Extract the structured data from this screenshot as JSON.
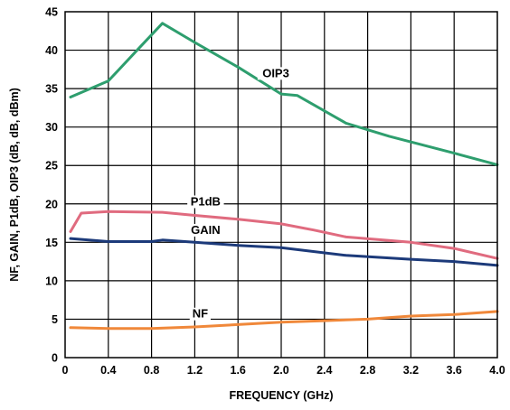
{
  "chart_data": {
    "type": "line",
    "xlabel": "FREQUENCY (GHz)",
    "ylabel": "NF, GAIN, P1dB, OIP3 (dB, dB, dBm)",
    "xlim": [
      0,
      4.0
    ],
    "ylim": [
      0,
      45
    ],
    "x_ticks": [
      "0",
      "0.4",
      "0.8",
      "1.2",
      "1.6",
      "2.0",
      "2.4",
      "2.8",
      "3.2",
      "3.6",
      "4.0"
    ],
    "y_ticks": [
      "0",
      "5",
      "10",
      "15",
      "20",
      "25",
      "30",
      "35",
      "40",
      "45"
    ],
    "grid": true,
    "series": [
      {
        "name": "OIP3",
        "color": "#2e9e6e",
        "label_at": [
          1.95,
          36.5
        ],
        "points": [
          [
            0.05,
            33.9
          ],
          [
            0.4,
            36.0
          ],
          [
            0.7,
            40.5
          ],
          [
            0.9,
            43.5
          ],
          [
            1.2,
            41.0
          ],
          [
            1.6,
            37.8
          ],
          [
            2.0,
            34.3
          ],
          [
            2.15,
            34.1
          ],
          [
            2.6,
            30.5
          ],
          [
            3.0,
            28.8
          ],
          [
            3.6,
            26.6
          ],
          [
            4.0,
            25.1
          ]
        ]
      },
      {
        "name": "P1dB",
        "color": "#e06b7f",
        "label_at": [
          1.3,
          19.8
        ],
        "points": [
          [
            0.05,
            16.4
          ],
          [
            0.15,
            18.8
          ],
          [
            0.4,
            19.0
          ],
          [
            0.9,
            18.9
          ],
          [
            1.2,
            18.5
          ],
          [
            1.6,
            18.0
          ],
          [
            2.0,
            17.4
          ],
          [
            2.3,
            16.6
          ],
          [
            2.6,
            15.7
          ],
          [
            3.2,
            15.0
          ],
          [
            3.6,
            14.2
          ],
          [
            4.0,
            12.9
          ]
        ]
      },
      {
        "name": "GAIN",
        "color": "#1c3a7a",
        "label_at": [
          1.3,
          16.1
        ],
        "points": [
          [
            0.05,
            15.5
          ],
          [
            0.4,
            15.1
          ],
          [
            0.8,
            15.1
          ],
          [
            0.9,
            15.3
          ],
          [
            1.2,
            15.0
          ],
          [
            1.6,
            14.6
          ],
          [
            2.0,
            14.3
          ],
          [
            2.6,
            13.3
          ],
          [
            3.2,
            12.8
          ],
          [
            3.6,
            12.5
          ],
          [
            4.0,
            12.0
          ]
        ]
      },
      {
        "name": "NF",
        "color": "#f0883a",
        "label_at": [
          1.25,
          5.2
        ],
        "points": [
          [
            0.05,
            3.9
          ],
          [
            0.4,
            3.8
          ],
          [
            0.8,
            3.8
          ],
          [
            1.2,
            4.0
          ],
          [
            1.6,
            4.3
          ],
          [
            2.0,
            4.6
          ],
          [
            2.4,
            4.8
          ],
          [
            2.8,
            5.0
          ],
          [
            3.2,
            5.4
          ],
          [
            3.6,
            5.6
          ],
          [
            4.0,
            6.0
          ]
        ]
      }
    ]
  }
}
